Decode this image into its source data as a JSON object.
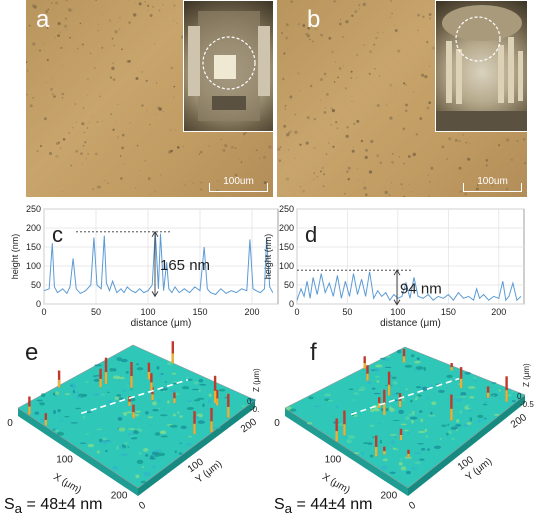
{
  "panels": {
    "a": {
      "letter": "a",
      "scale_label": "100um"
    },
    "b": {
      "letter": "b",
      "scale_label": "100um"
    },
    "c": {
      "letter": "c"
    },
    "d": {
      "letter": "d"
    },
    "e": {
      "letter": "e",
      "sa_symbol": "S",
      "sa_sub": "a",
      "sa_value": " = 48±4 nm"
    },
    "f": {
      "letter": "f",
      "sa_symbol": "S",
      "sa_sub": "a",
      "sa_value": " = 44±4 nm"
    }
  },
  "surface_axes": {
    "x_label": "X (μm)",
    "y_label": "Y (μm)",
    "z_label": "Z (μm)",
    "x_ticks": [
      "0",
      "100",
      "200"
    ],
    "y_ticks": [
      "0",
      "100",
      "200"
    ],
    "e_z_ticks": [
      "0",
      "-0."
    ],
    "f_z_ticks": [
      "0",
      "-0.5"
    ]
  },
  "colors": {
    "profile_line": "#5b9bd5",
    "surface": "#2ec7b8"
  },
  "chart_data": [
    {
      "type": "line",
      "panel": "c",
      "xlabel": "distance (μm)",
      "ylabel": "height (nm)",
      "xlim": [
        0,
        225
      ],
      "ylim": [
        0,
        250
      ],
      "x_ticks": [
        0,
        50,
        100,
        150,
        200
      ],
      "y_ticks": [
        0,
        50,
        100,
        150,
        200,
        250
      ],
      "grid": true,
      "annotation": "165 nm",
      "annotation_range": [
        20,
        190
      ],
      "series": [
        {
          "x": [
            0,
            5,
            8,
            10,
            13,
            18,
            22,
            25,
            28,
            31,
            35,
            40,
            45,
            48,
            51,
            55,
            58,
            60,
            63,
            66,
            70,
            74,
            77,
            80,
            84,
            88,
            92,
            96,
            100,
            104,
            107,
            110,
            112,
            115,
            118,
            120,
            123,
            126,
            130,
            135,
            140,
            145,
            150,
            154,
            157,
            160,
            165,
            170,
            175,
            180,
            185,
            190,
            195,
            198,
            201,
            204,
            208,
            212,
            214,
            217,
            220
          ],
          "y": [
            35,
            40,
            160,
            45,
            30,
            40,
            28,
            45,
            120,
            40,
            28,
            35,
            50,
            175,
            50,
            40,
            180,
            55,
            35,
            60,
            30,
            40,
            30,
            45,
            35,
            30,
            40,
            30,
            35,
            50,
            190,
            40,
            185,
            35,
            110,
            40,
            30,
            45,
            30,
            40,
            30,
            45,
            35,
            150,
            40,
            30,
            25,
            40,
            28,
            35,
            30,
            40,
            35,
            170,
            40,
            35,
            30,
            40,
            175,
            45,
            30
          ]
        }
      ]
    },
    {
      "type": "line",
      "panel": "d",
      "xlabel": "distance (μm)",
      "ylabel": "height (nm)",
      "xlim": [
        0,
        225
      ],
      "ylim": [
        0,
        250
      ],
      "x_ticks": [
        0,
        50,
        100,
        150,
        200
      ],
      "y_ticks": [
        0,
        50,
        100,
        150,
        200,
        250
      ],
      "grid": true,
      "annotation": "94 nm",
      "annotation_range": [
        -5,
        89
      ],
      "series": [
        {
          "x": [
            0,
            4,
            7,
            10,
            13,
            16,
            20,
            24,
            28,
            32,
            36,
            40,
            44,
            48,
            52,
            56,
            60,
            64,
            68,
            72,
            76,
            80,
            84,
            88,
            92,
            96,
            100,
            104,
            108,
            112,
            116,
            120,
            125,
            130,
            135,
            140,
            145,
            150,
            155,
            160,
            165,
            170,
            175,
            178,
            181,
            185,
            190,
            195,
            200,
            204,
            207,
            210,
            214,
            218,
            222
          ],
          "y": [
            10,
            40,
            20,
            60,
            15,
            70,
            25,
            80,
            30,
            55,
            20,
            75,
            15,
            60,
            20,
            80,
            25,
            65,
            20,
            85,
            15,
            35,
            20,
            30,
            10,
            25,
            15,
            20,
            55,
            15,
            70,
            20,
            15,
            25,
            10,
            20,
            15,
            25,
            10,
            30,
            15,
            20,
            10,
            40,
            15,
            25,
            10,
            20,
            15,
            60,
            10,
            20,
            55,
            10,
            20
          ]
        }
      ]
    }
  ]
}
